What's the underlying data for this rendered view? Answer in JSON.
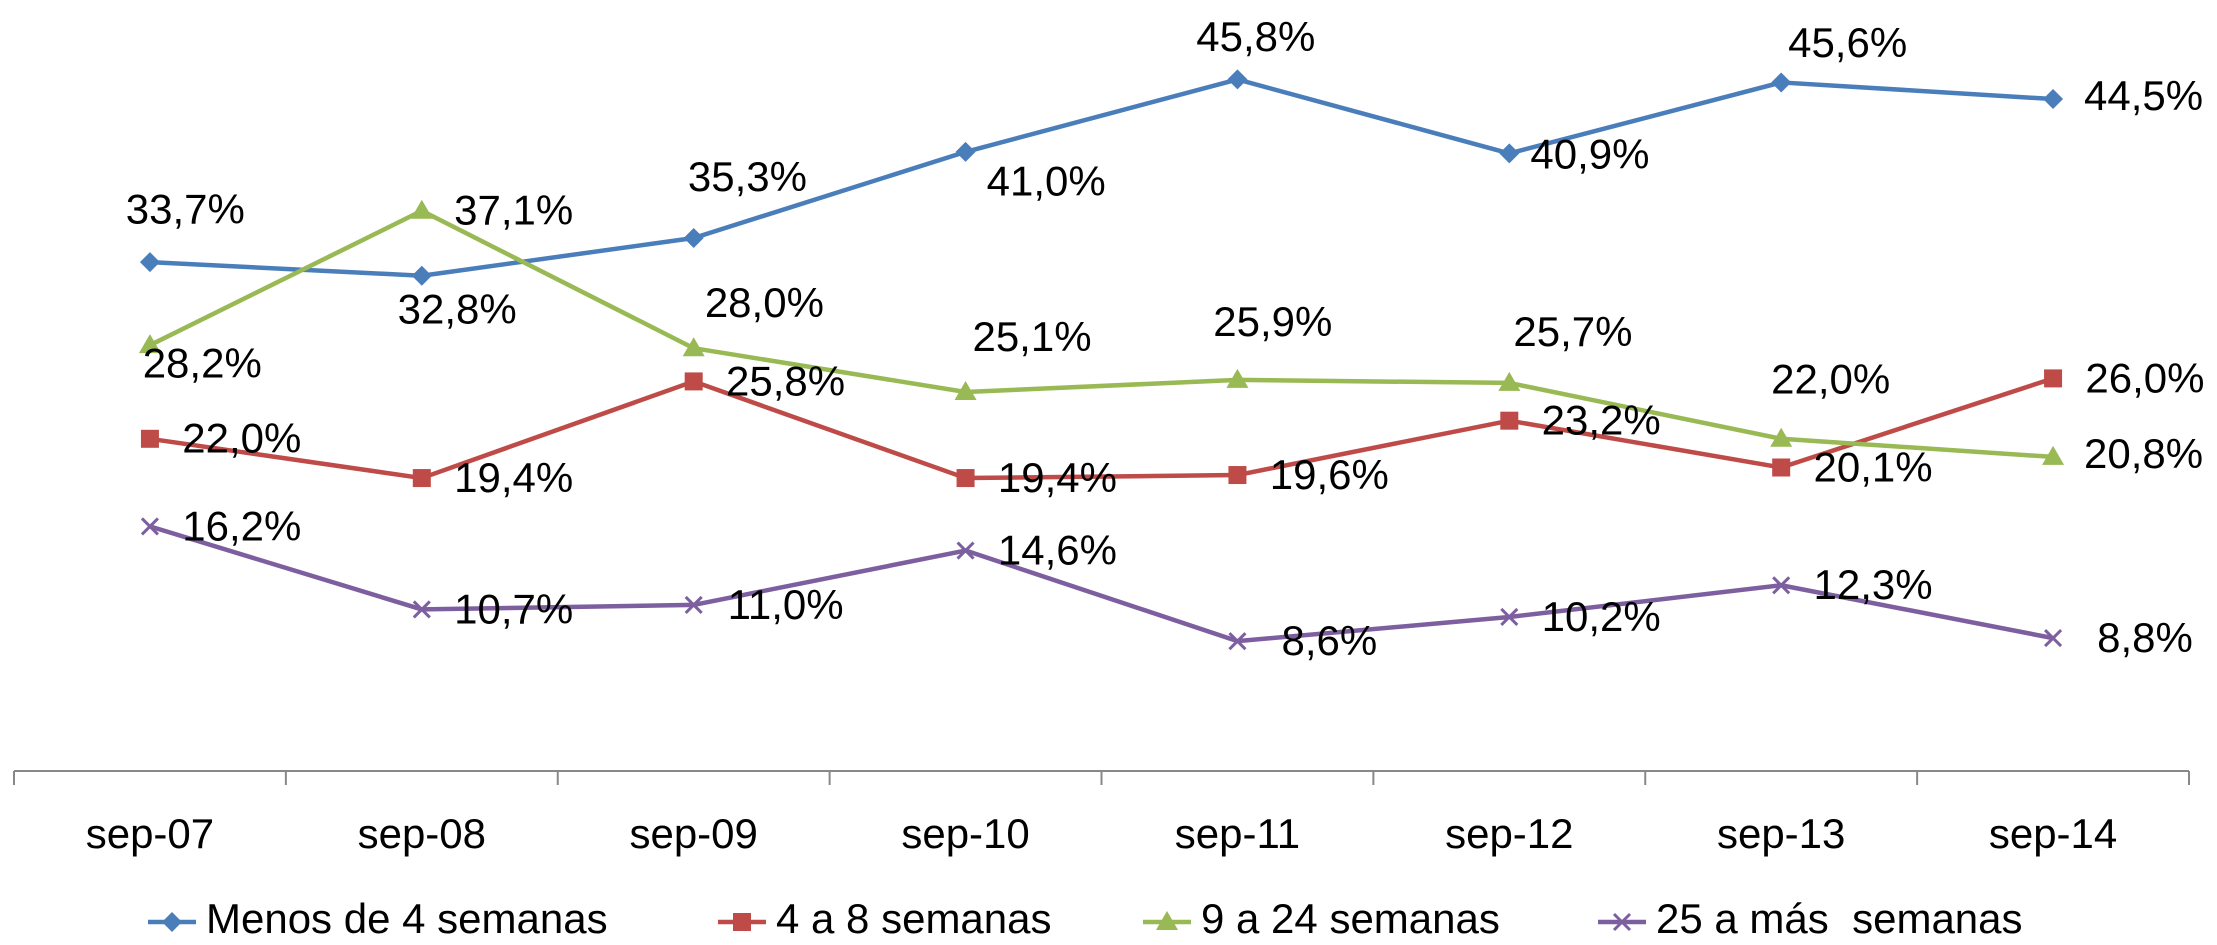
{
  "chart_data": {
    "type": "line",
    "categories": [
      "sep-07",
      "sep-08",
      "sep-09",
      "sep-10",
      "sep-11",
      "sep-12",
      "sep-13",
      "sep-14"
    ],
    "ylim": [
      0,
      50
    ],
    "legend": "bottom",
    "series": [
      {
        "name": "Menos de 4 semanas",
        "color": "#4a7ebb",
        "marker": "diamond",
        "values": [
          33.7,
          32.8,
          35.3,
          41.0,
          45.8,
          40.9,
          45.6,
          44.5
        ],
        "value_labels": [
          "33,7%",
          "32,8%",
          "35,3%",
          "41,0%",
          "45,8%",
          "40,9%",
          "45,6%",
          "44,5%"
        ]
      },
      {
        "name": "4 a 8 semanas",
        "color": "#be4b48",
        "marker": "square",
        "values": [
          22.0,
          19.4,
          25.8,
          19.4,
          19.6,
          23.2,
          20.1,
          26.0
        ],
        "value_labels": [
          "22,0%",
          "19,4%",
          "25,8%",
          "19,4%",
          "19,6%",
          "23,2%",
          "20,1%",
          "26,0%"
        ]
      },
      {
        "name": "9 a 24 semanas",
        "color": "#98b954",
        "marker": "triangle",
        "values": [
          28.2,
          37.1,
          28.0,
          25.1,
          25.9,
          25.7,
          22.0,
          20.8
        ],
        "value_labels": [
          "28,2%",
          "37,1%",
          "28,0%",
          "25,1%",
          "25,9%",
          "25,7%",
          "22,0%",
          "20,8%"
        ]
      },
      {
        "name": "25 a más  semanas",
        "color": "#7d5fa0",
        "marker": "x",
        "values": [
          16.2,
          10.7,
          11.0,
          14.6,
          8.6,
          10.2,
          12.3,
          8.8
        ],
        "value_labels": [
          "16,2%",
          "10,7%",
          "11,0%",
          "14,6%",
          "8,6%",
          "10,2%",
          "12,3%",
          "8,8%"
        ]
      }
    ]
  }
}
